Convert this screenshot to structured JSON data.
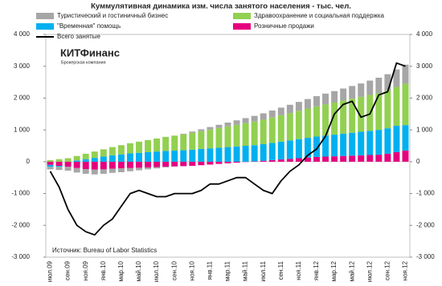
{
  "chart_data": {
    "type": "bar",
    "stacked": true,
    "title": "Куммулятивная динамика изм. числа занятого населения - тыс. чел.",
    "source": "Источник: Bureau of Labor Statistics",
    "logo": {
      "name": "КИТФинанс",
      "tagline": "Брокерская компания",
      "color": "#e0004d"
    },
    "categories": [
      "июл.09",
      null,
      "сен.09",
      null,
      "ноя.09",
      null,
      "янв.10",
      null,
      "мар.10",
      null,
      "май.10",
      null,
      "июл.10",
      null,
      "сен.10",
      null,
      "ноя.10",
      null,
      "янв.11",
      null,
      "мар.11",
      null,
      "май.11",
      null,
      "июл.11",
      null,
      "сен.11",
      null,
      "ноя.11",
      null,
      "янв.12",
      null,
      "мар.12",
      null,
      "май.12",
      null,
      "июл.12",
      null,
      "сен.12",
      null,
      "ноя.12"
    ],
    "series": [
      {
        "name": "Туристический и гостиничный бизнес",
        "color": "#a6a6a6",
        "values": [
          -80,
          -100,
          -120,
          -140,
          -150,
          -150,
          -140,
          -130,
          -120,
          -100,
          -80,
          -60,
          -40,
          -20,
          0,
          20,
          40,
          60,
          80,
          100,
          120,
          140,
          160,
          180,
          200,
          220,
          240,
          260,
          280,
          300,
          320,
          340,
          360,
          380,
          400,
          420,
          450,
          480,
          510,
          550,
          600
        ]
      },
      {
        "name": "Здравоохранение и социальная поддержка",
        "color": "#92d050",
        "values": [
          50,
          80,
          110,
          140,
          170,
          200,
          230,
          260,
          290,
          320,
          350,
          380,
          410,
          440,
          470,
          500,
          530,
          560,
          590,
          620,
          650,
          680,
          710,
          740,
          770,
          800,
          830,
          860,
          890,
          920,
          950,
          980,
          1010,
          1040,
          1070,
          1100,
          1130,
          1160,
          1190,
          1220,
          1300
        ]
      },
      {
        "name": "\"Временная\" помощь",
        "color": "#00b0f0",
        "values": [
          -60,
          -30,
          0,
          40,
          80,
          120,
          160,
          200,
          230,
          260,
          280,
          300,
          320,
          340,
          350,
          360,
          380,
          400,
          420,
          440,
          460,
          480,
          500,
          510,
          520,
          540,
          560,
          580,
          600,
          620,
          640,
          660,
          680,
          700,
          720,
          740,
          760,
          780,
          800,
          830,
          800
        ]
      },
      {
        "name": "Розничные продажи",
        "color": "#e6007e",
        "values": [
          -100,
          -130,
          -160,
          -200,
          -230,
          -250,
          -240,
          -220,
          -210,
          -200,
          -190,
          -180,
          -170,
          -160,
          -150,
          -140,
          -130,
          -110,
          -90,
          -70,
          -50,
          -30,
          -10,
          10,
          30,
          50,
          70,
          90,
          110,
          130,
          150,
          160,
          170,
          180,
          190,
          200,
          210,
          220,
          250,
          300,
          350
        ]
      },
      {
        "name": "Всего занятые",
        "color": "#000000",
        "type": "line",
        "axis": "y2",
        "values": [
          -300,
          -800,
          -1500,
          -2000,
          -2200,
          -2300,
          -2000,
          -1800,
          -1400,
          -1000,
          -900,
          -1000,
          -1100,
          -1100,
          -1000,
          -1000,
          -1000,
          -900,
          -700,
          -700,
          -600,
          -500,
          -500,
          -700,
          -900,
          -1000,
          -600,
          -300,
          -100,
          200,
          400,
          800,
          1500,
          1800,
          1900,
          1400,
          1500,
          2100,
          2200,
          3100,
          3000
        ]
      }
    ],
    "ylim": [
      -3000,
      4000
    ],
    "yticks": [
      {
        "value": -3000,
        "label": "-3 000"
      },
      {
        "value": -2000,
        "label": "-2 000"
      },
      {
        "value": -1000,
        "label": "-1 000"
      },
      0,
      {
        "value": 1000,
        "label": "1 000"
      },
      {
        "value": 2000,
        "label": "2 000"
      },
      {
        "value": 3000,
        "label": "3 000"
      },
      {
        "value": 4000,
        "label": "4 000"
      }
    ],
    "y2lim": [
      -3000,
      4000
    ],
    "y2ticks": [
      {
        "value": -3000,
        "label": "-3 000"
      },
      {
        "value": -2000,
        "label": "-2 000"
      },
      {
        "value": -1000,
        "label": "-1 000"
      },
      0,
      {
        "value": 1000,
        "label": "1 000"
      },
      {
        "value": 2000,
        "label": "2 000"
      },
      {
        "value": 3000,
        "label": "3 000"
      },
      {
        "value": 4000,
        "label": "4 000"
      }
    ],
    "grid": false
  }
}
